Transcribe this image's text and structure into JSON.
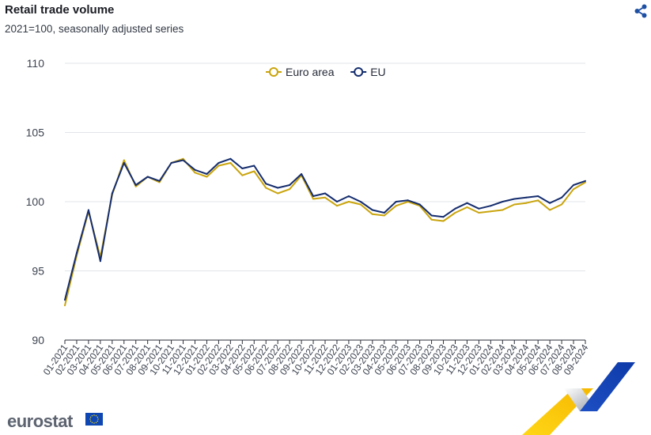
{
  "title": "Retail trade volume",
  "subtitle": "2021=100, seasonally adjusted series",
  "logo_text": "eurostat",
  "icons": {
    "share": "share-icon",
    "flag": "eu-flag-icon"
  },
  "chart_data": {
    "type": "line",
    "ylim": [
      90,
      110
    ],
    "yticks": [
      90,
      95,
      100,
      105,
      110
    ],
    "ytick_labels": [
      "90",
      "95",
      "100",
      "105",
      "110"
    ],
    "grid": true,
    "legend_position": "top-center",
    "x": [
      "01-2021",
      "02-2021",
      "03-2021",
      "04-2021",
      "05-2021",
      "06-2021",
      "07-2021",
      "08-2021",
      "09-2021",
      "10-2021",
      "11-2021",
      "12-2021",
      "01-2022",
      "02-2022",
      "03-2022",
      "04-2022",
      "05-2022",
      "06-2022",
      "07-2022",
      "08-2022",
      "09-2022",
      "10-2022",
      "11-2022",
      "12-2022",
      "01-2023",
      "02-2023",
      "03-2023",
      "04-2023",
      "05-2023",
      "06-2023",
      "07-2023",
      "08-2023",
      "09-2023",
      "10-2023",
      "11-2023",
      "12-2023",
      "01-2024",
      "02-2024",
      "03-2024",
      "04-2024",
      "05-2024",
      "06-2024",
      "07-2024",
      "08-2024",
      "09-2024"
    ],
    "series": [
      {
        "name": "Euro area",
        "color": "#c9a40c",
        "values": [
          92.5,
          96.1,
          99.3,
          96.0,
          100.5,
          103.0,
          101.1,
          101.8,
          101.4,
          102.8,
          103.1,
          102.1,
          101.8,
          102.6,
          102.8,
          101.9,
          102.2,
          101.0,
          100.6,
          100.9,
          101.9,
          100.2,
          100.3,
          99.7,
          100.0,
          99.8,
          99.1,
          99.0,
          99.7,
          100.0,
          99.7,
          98.7,
          98.6,
          99.2,
          99.6,
          99.2,
          99.3,
          99.4,
          99.8,
          99.9,
          100.1,
          99.4,
          99.8,
          100.9,
          101.4
        ]
      },
      {
        "name": "EU",
        "color": "#152d6e",
        "values": [
          92.9,
          96.3,
          99.4,
          95.7,
          100.6,
          102.8,
          101.2,
          101.8,
          101.5,
          102.8,
          103.0,
          102.3,
          102.0,
          102.8,
          103.1,
          102.4,
          102.6,
          101.3,
          101.0,
          101.2,
          102.0,
          100.4,
          100.6,
          100.0,
          100.4,
          100.0,
          99.4,
          99.2,
          100.0,
          100.1,
          99.8,
          99.0,
          98.9,
          99.5,
          99.9,
          99.5,
          99.7,
          100.0,
          100.2,
          100.3,
          100.4,
          99.9,
          100.3,
          101.2,
          101.5
        ]
      }
    ]
  }
}
